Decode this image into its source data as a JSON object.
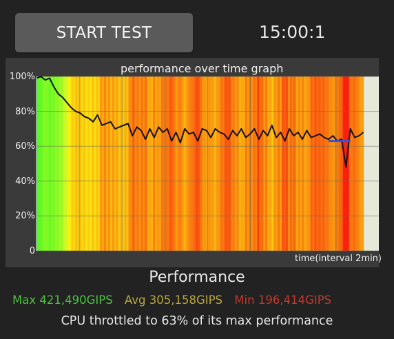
{
  "header": {
    "start_button_label": "START TEST",
    "timer": "15:00:1"
  },
  "graph": {
    "title": "performance over time graph",
    "y_ticks": [
      "100%",
      "80%",
      "60%",
      "40%",
      "20%",
      "0"
    ],
    "x_label": "time(interval 2min)",
    "colors": {
      "plot_background": "#e6e8da",
      "panel_background": "#3a3a3a",
      "line": "#111111",
      "avg_marker": "#3a4fe0"
    }
  },
  "chart_data": {
    "type": "line",
    "title": "performance over time graph",
    "xlabel": "time(interval 2min)",
    "ylabel": "",
    "ylim": [
      0,
      100
    ],
    "yticks": [
      0,
      20,
      40,
      60,
      80,
      100
    ],
    "xlim": [
      0,
      15
    ],
    "x_unit": "minutes",
    "grid": true,
    "series": [
      {
        "x": [
          0,
          0.2,
          0.4,
          0.6,
          0.8,
          1.0,
          1.2,
          1.4,
          1.6,
          1.8,
          2.0,
          2.2,
          2.4,
          2.6,
          2.8,
          3.0,
          3.2,
          3.4,
          3.6,
          3.8,
          4.0,
          4.2,
          4.4,
          4.6,
          4.8,
          5.0,
          5.2,
          5.4,
          5.6,
          5.8,
          6.0,
          6.2,
          6.4,
          6.6,
          6.8,
          7.0,
          7.2,
          7.4,
          7.6,
          7.8,
          8.0,
          8.2,
          8.4,
          8.6,
          8.8,
          9.0,
          9.2,
          9.4,
          9.6,
          9.8,
          10.0,
          10.2,
          10.4,
          10.6,
          10.8,
          11.0,
          11.2,
          11.4,
          11.6,
          11.8,
          12.0,
          12.2,
          12.4,
          12.6,
          12.8,
          13.0,
          13.2,
          13.4,
          13.6,
          13.8,
          14.0,
          14.2,
          14.4,
          14.6,
          14.8,
          15.0
        ],
        "values": [
          99,
          100,
          98,
          99,
          94,
          90,
          88,
          85,
          82,
          80,
          79,
          77,
          76,
          74,
          78,
          72,
          73,
          74,
          70,
          71,
          72,
          73,
          66,
          71,
          69,
          64,
          70,
          65,
          71,
          68,
          70,
          63,
          68,
          62,
          70,
          67,
          68,
          63,
          70,
          69,
          65,
          70,
          68,
          67,
          64,
          69,
          66,
          70,
          65,
          67,
          70,
          64,
          69,
          66,
          72,
          65,
          68,
          63,
          70,
          66,
          68,
          64,
          69,
          65,
          66,
          67,
          65,
          64,
          66,
          63,
          64,
          48,
          70,
          65,
          66,
          68
        ]
      }
    ],
    "annotations": [
      {
        "type": "avg_marker",
        "y": 63,
        "x_start": 13.4,
        "x_end": 14.4,
        "color": "#3a4fe0"
      }
    ]
  },
  "summary": {
    "heading": "Performance",
    "max_text": "Max 421,490GIPS",
    "avg_text": "Avg 305,158GIPS",
    "min_text": "Min 196,414GIPS",
    "throttle_text": "CPU throttled to 63% of its max performance",
    "colors": {
      "max": "#49c23b",
      "avg": "#b8a63d",
      "min": "#c0392b"
    }
  }
}
